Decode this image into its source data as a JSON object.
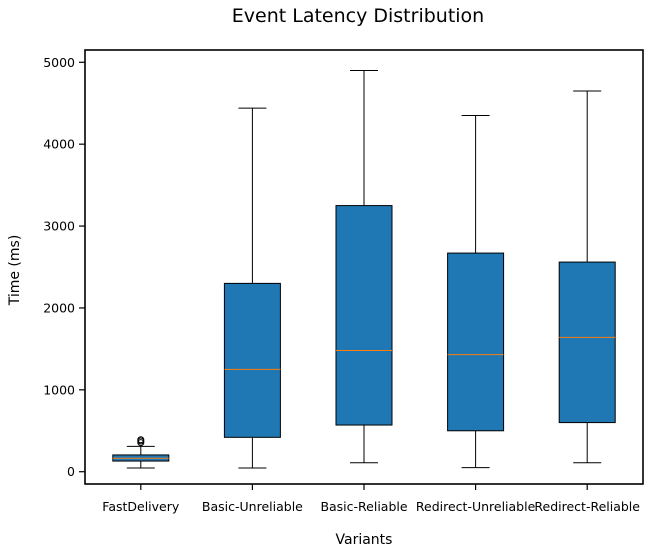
{
  "chart_data": {
    "type": "boxplot",
    "title": "Event Latency Distribution",
    "xlabel": "Variants",
    "ylabel": "Time (ms)",
    "ylim": [
      -150,
      5150
    ],
    "yticks": [
      0,
      1000,
      2000,
      3000,
      4000,
      5000
    ],
    "grid": false,
    "categories": [
      "FastDelivery",
      "Basic-Unreliable",
      "Basic-Reliable",
      "Redirect-Unreliable",
      "Redirect-Reliable"
    ],
    "boxes": [
      {
        "whisker_low": 45,
        "q1": 130,
        "median": 165,
        "q3": 205,
        "whisker_high": 310,
        "outliers": [
          355,
          375,
          390
        ]
      },
      {
        "whisker_low": 45,
        "q1": 420,
        "median": 1250,
        "q3": 2300,
        "whisker_high": 4440,
        "outliers": []
      },
      {
        "whisker_low": 110,
        "q1": 570,
        "median": 1480,
        "q3": 3250,
        "whisker_high": 4900,
        "outliers": []
      },
      {
        "whisker_low": 50,
        "q1": 500,
        "median": 1430,
        "q3": 2670,
        "whisker_high": 4350,
        "outliers": []
      },
      {
        "whisker_low": 110,
        "q1": 600,
        "median": 1640,
        "q3": 2560,
        "whisker_high": 4650,
        "outliers": []
      }
    ],
    "colors": {
      "box_fill": "#1f77b4",
      "median_line": "#ff7f0e",
      "edge": "#000000"
    }
  }
}
